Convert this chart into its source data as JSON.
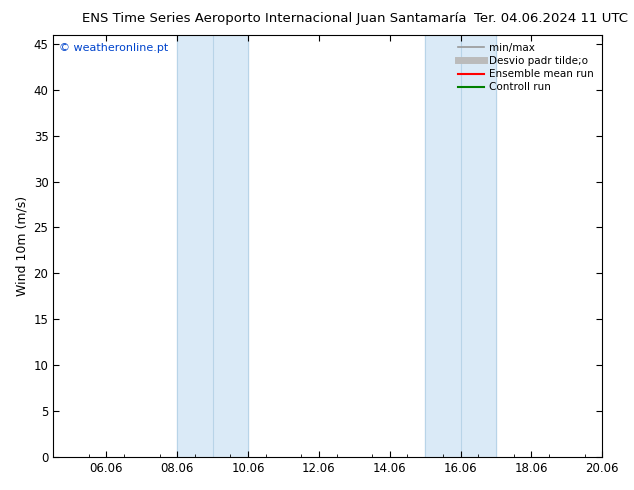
{
  "title_left": "ENS Time Series Aeroporto Internacional Juan Santamaría",
  "title_right": "Ter. 04.06.2024 11 UTC",
  "ylabel": "Wind 10m (m/s)",
  "ylim": [
    0,
    46
  ],
  "yticks": [
    0,
    5,
    10,
    15,
    20,
    25,
    30,
    35,
    40,
    45
  ],
  "xlim": [
    4.5,
    19.5
  ],
  "xtick_labels": [
    "06.06",
    "08.06",
    "10.06",
    "12.06",
    "14.06",
    "16.06",
    "18.06",
    "20.06"
  ],
  "xtick_positions": [
    6,
    8,
    10,
    12,
    14,
    16,
    18,
    20
  ],
  "shaded_bands": [
    {
      "xmin": 8,
      "xmax": 9,
      "color": "#ddeeff"
    },
    {
      "xmin": 9,
      "xmax": 10,
      "color": "#cce5f8"
    },
    {
      "xmin": 15,
      "xmax": 16,
      "color": "#ddeeff"
    },
    {
      "xmin": 16,
      "xmax": 17,
      "color": "#cce5f8"
    }
  ],
  "shade_color_light": "#ddeeff",
  "shade_color_main": "#cce5f8",
  "background_color": "#ffffff",
  "watermark": "© weatheronline.pt",
  "watermark_color": "#0044cc",
  "legend_items": [
    {
      "label": "min/max",
      "color": "#999999",
      "lw": 1.2
    },
    {
      "label": "Desvio padr tilde;o",
      "color": "#bbbbbb",
      "lw": 5
    },
    {
      "label": "Ensemble mean run",
      "color": "#ff0000",
      "lw": 1.5
    },
    {
      "label": "Controll run",
      "color": "#008000",
      "lw": 1.5
    }
  ],
  "title_fontsize": 9.5,
  "ylabel_fontsize": 9,
  "tick_fontsize": 8.5
}
